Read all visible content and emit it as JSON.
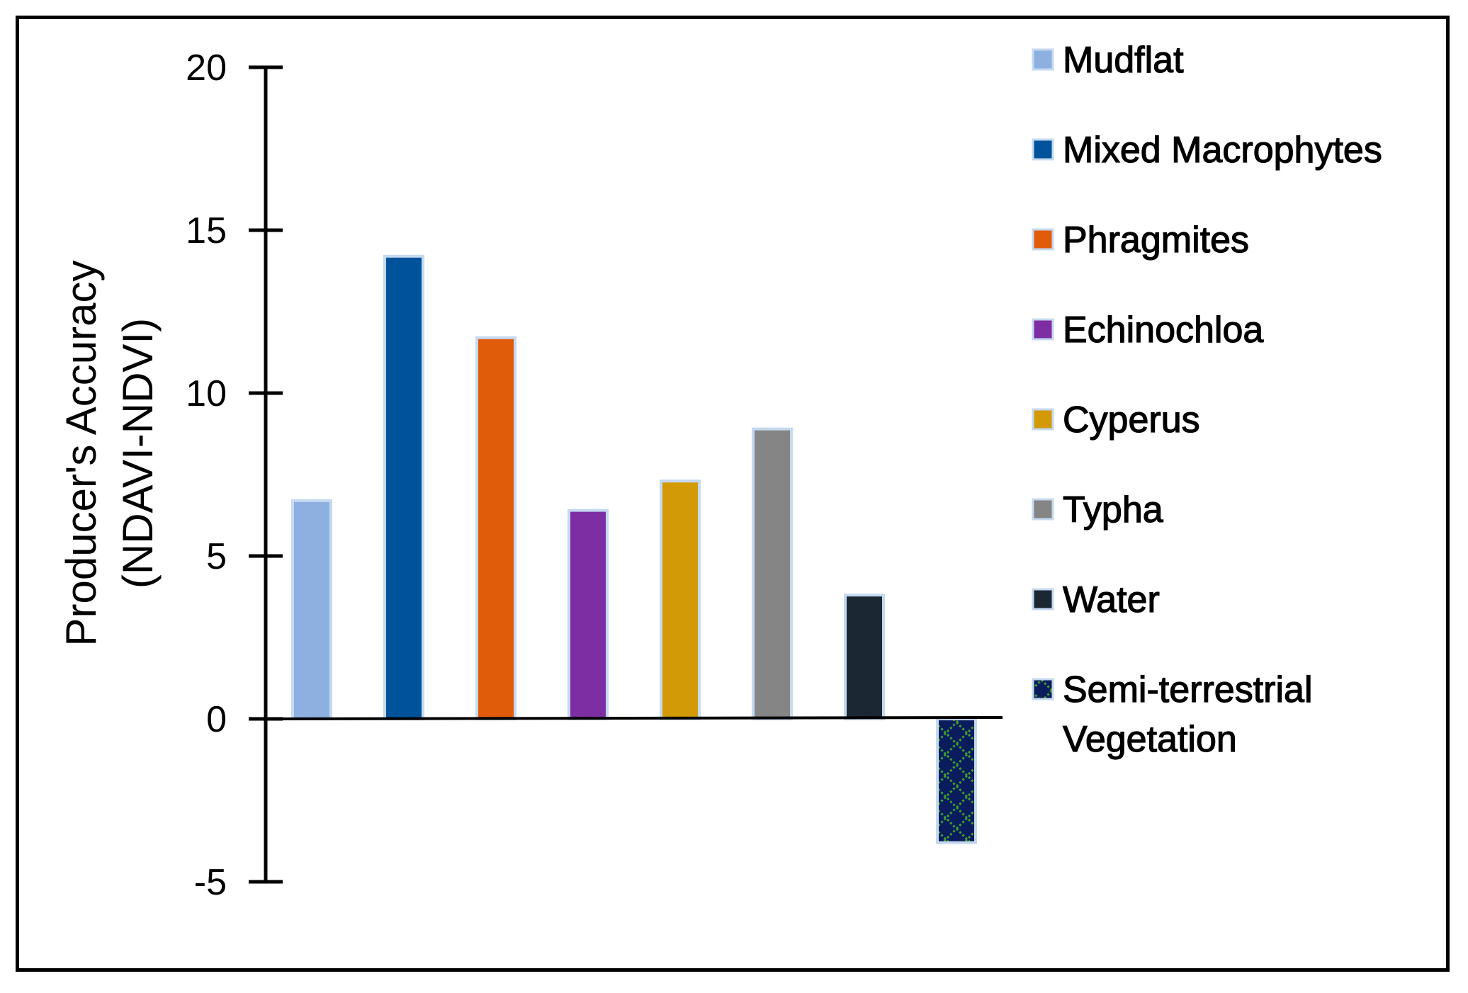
{
  "chart_data": {
    "type": "bar",
    "title": "",
    "xlabel": "",
    "ylabel_lines": [
      "Producer's Accuracy",
      "(NDAVI-NDVI)"
    ],
    "ylim": [
      -5,
      20
    ],
    "yticks": [
      20,
      15,
      10,
      5,
      0,
      -5
    ],
    "ytick_labels": [
      "20",
      "15",
      "10",
      "5",
      "0",
      "-5"
    ],
    "legend_position": "right",
    "categories": [
      "Mudflat",
      "Mixed Macrophytes",
      "Phragmites",
      "Echinochloa",
      "Cyperus",
      "Typha",
      "Water",
      "Semi-terrestrial Vegetation"
    ],
    "legend_lines": [
      [
        "Mudflat"
      ],
      [
        "Mixed Macrophytes"
      ],
      [
        "Phragmites"
      ],
      [
        "Echinochloa"
      ],
      [
        "Cyperus"
      ],
      [
        "Typha"
      ],
      [
        "Water"
      ],
      [
        "Semi-terrestrial",
        "Vegetation"
      ]
    ],
    "values": [
      6.7,
      14.2,
      11.7,
      6.4,
      7.3,
      8.9,
      3.8,
      -3.8
    ],
    "colors": [
      "#8DB0E0",
      "#00539B",
      "#E05C0A",
      "#7E2EA3",
      "#D39A07",
      "#858585",
      "#1B2733",
      "#0A1C5C"
    ],
    "patterns": [
      "",
      "",
      "",
      "",
      "",
      "",
      "",
      "green-crosshatch"
    ],
    "bar_outline_color": "#C5D9F0"
  }
}
